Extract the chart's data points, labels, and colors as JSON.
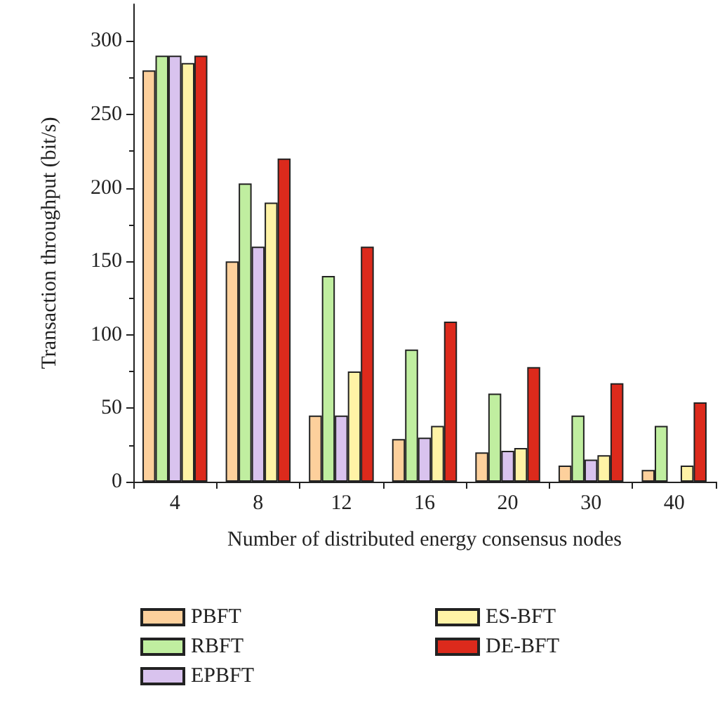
{
  "chart_data": {
    "type": "bar",
    "xlabel": "Number of distributed energy consensus nodes",
    "ylabel": "Transaction throughput (bit/s)",
    "categories": [
      "4",
      "8",
      "12",
      "16",
      "20",
      "30",
      "40"
    ],
    "series": [
      {
        "name": "PBFT",
        "color": "#fdd09c",
        "values": [
          280,
          150,
          45,
          29,
          20,
          11,
          8
        ]
      },
      {
        "name": "RBFT",
        "color": "#c0eea0",
        "values": [
          290,
          203,
          140,
          90,
          60,
          45,
          38
        ]
      },
      {
        "name": "EPBFT",
        "color": "#d9c3ee",
        "values": [
          290,
          160,
          45,
          30,
          21,
          15,
          null
        ]
      },
      {
        "name": "ES-BFT",
        "color": "#fff3a6",
        "values": [
          285,
          190,
          75,
          38,
          23,
          18,
          11
        ]
      },
      {
        "name": "DE-BFT",
        "color": "#dc2a1c",
        "values": [
          290,
          220,
          160,
          109,
          78,
          67,
          54
        ]
      }
    ],
    "ylim": [
      0,
      325
    ],
    "yticks": [
      0,
      50,
      100,
      150,
      200,
      250,
      300
    ],
    "grid": false,
    "legend": "bottom"
  }
}
